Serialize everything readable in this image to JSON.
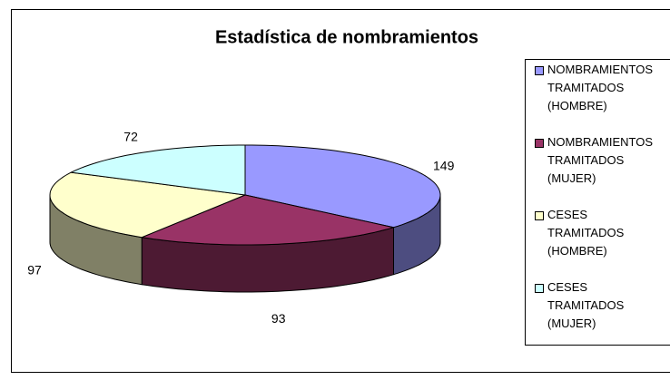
{
  "chart_data": {
    "type": "pie3d",
    "title": "Estadística de nombramientos",
    "categories": [
      "NOMBRAMIENTOS TRAMITADOS (HOMBRE)",
      "NOMBRAMIENTOS TRAMITADOS (MUJER)",
      "CESES TRAMITADOS (HOMBRE)",
      "CESES TRAMITADOS (MUJER)"
    ],
    "values": [
      149,
      93,
      97,
      72
    ],
    "colors": [
      "#9999ff",
      "#993366",
      "#ffffcc",
      "#ccffff"
    ],
    "legend": "right"
  }
}
